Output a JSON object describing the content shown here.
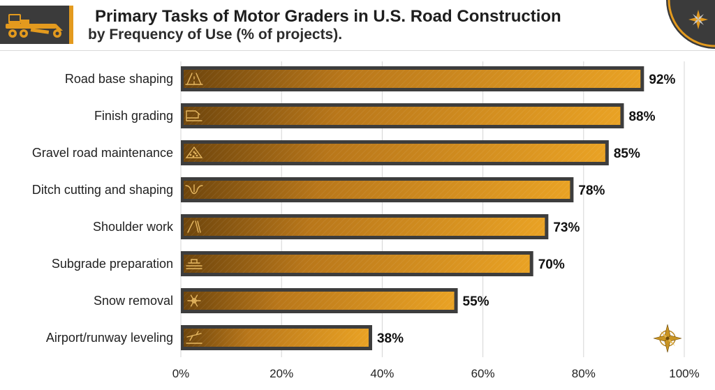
{
  "chart_data": {
    "type": "bar",
    "orientation": "horizontal",
    "title": "Primary Tasks of Motor Graders in U.S. Road Construction",
    "subtitle": "by Frequency of Use (% of projects).",
    "categories": [
      "Road base shaping",
      "Finish grading",
      "Gravel road maintenance",
      "Ditch cutting and shaping",
      "Shoulder work",
      "Subgrade preparation",
      "Snow removal",
      "Airport/runway leveling"
    ],
    "values": [
      92,
      88,
      85,
      78,
      73,
      70,
      55,
      38
    ],
    "value_labels": [
      "92%",
      "88%",
      "85%",
      "78%",
      "73%",
      "70%",
      "55%",
      "38%"
    ],
    "icons": [
      "road-icon",
      "finish-grade-icon",
      "gravel-pile-icon",
      "ditch-icon",
      "shoulder-icon",
      "subgrade-icon",
      "snowflake-icon",
      "airplane-icon"
    ],
    "xlim": [
      0,
      100
    ],
    "xticks": [
      0,
      20,
      40,
      60,
      80,
      100
    ],
    "xtick_labels": [
      "0%",
      "20%",
      "40%",
      "60%",
      "80%",
      "100%"
    ],
    "grid": true,
    "colors": {
      "bar_fill": "#e39a1e",
      "bar_dark": "#7a4e0e",
      "bar_frame": "#3d3d3d",
      "grid": "#d4d4d4"
    }
  }
}
